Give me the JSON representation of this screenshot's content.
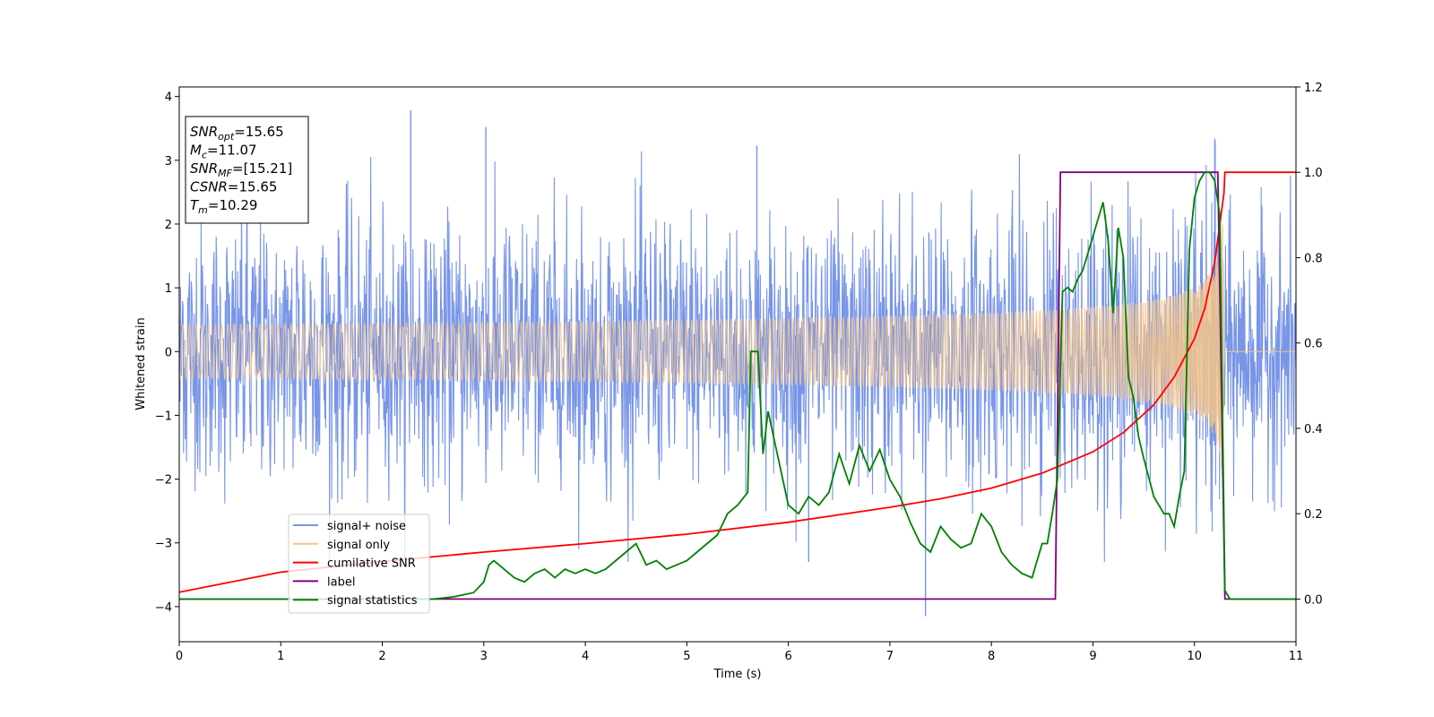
{
  "chart_data": {
    "type": "line",
    "xlabel": "Time (s)",
    "ylabel": "Whitened strain",
    "xlim": [
      0,
      11
    ],
    "ylim_left": [
      -4.55,
      4.15
    ],
    "ylim_right": [
      -0.1,
      1.2
    ],
    "x_ticks": [
      0,
      1,
      2,
      3,
      4,
      5,
      6,
      7,
      8,
      9,
      10,
      11
    ],
    "y_ticks_left": [
      -4,
      -3,
      -2,
      -1,
      0,
      1,
      2,
      3,
      4
    ],
    "y_ticks_right": [
      0.0,
      0.2,
      0.4,
      0.6,
      0.8,
      1.0,
      1.2
    ],
    "y_tick_labels_left": [
      "−4",
      "−3",
      "−2",
      "−1",
      "0",
      "1",
      "2",
      "3",
      "4"
    ],
    "y_tick_labels_right": [
      "0.0",
      "0.2",
      "0.4",
      "0.6",
      "0.8",
      "1.0",
      "1.2"
    ],
    "info_box": [
      {
        "sym": "SNR",
        "sub": "opt",
        "value": "=15.65"
      },
      {
        "sym": "M",
        "sub": "c",
        "value": "=11.07"
      },
      {
        "sym": "SNR",
        "sub": "MF",
        "value": "=[15.21]"
      },
      {
        "sym": "CSNR",
        "sub": "",
        "value": "=15.65"
      },
      {
        "sym": "T",
        "sub": "m",
        "value": "=10.29"
      }
    ],
    "legend_position": "lower-left",
    "series": [
      {
        "name": "signal+ noise",
        "axis": "left",
        "color": "#7895e8",
        "kind": "noise",
        "noise_std": 0.95,
        "noise_peak": 3.78,
        "noise_trough": -4.15
      },
      {
        "name": "signal only",
        "axis": "left",
        "color": "#f5c48a",
        "kind": "chirp",
        "amplitude_start": 0.06,
        "amplitude_end": 2.0,
        "merger_time": 10.29
      },
      {
        "name": "cumilative SNR",
        "axis": "right",
        "color": "#ff0000",
        "x": [
          0,
          1,
          2,
          3,
          4,
          5,
          6,
          7,
          7.5,
          8,
          8.5,
          9,
          9.3,
          9.6,
          9.8,
          10.0,
          10.1,
          10.2,
          10.29,
          10.3,
          11
        ],
        "y": [
          0.016,
          0.063,
          0.088,
          0.11,
          0.13,
          0.152,
          0.18,
          0.215,
          0.235,
          0.26,
          0.295,
          0.345,
          0.39,
          0.455,
          0.52,
          0.61,
          0.68,
          0.79,
          0.95,
          1.0,
          1.0
        ]
      },
      {
        "name": "label",
        "axis": "right",
        "color": "#800080",
        "x": [
          0,
          8.63,
          8.68,
          10.23,
          10.3,
          11
        ],
        "y": [
          0.0,
          0.0,
          1.0,
          1.0,
          0.0,
          0.0
        ]
      },
      {
        "name": "signal statistics",
        "axis": "right",
        "color": "#008000",
        "x": [
          0,
          2.5,
          2.7,
          2.9,
          3.0,
          3.05,
          3.1,
          3.2,
          3.3,
          3.4,
          3.5,
          3.6,
          3.7,
          3.8,
          3.9,
          4.0,
          4.1,
          4.2,
          4.3,
          4.4,
          4.5,
          4.6,
          4.7,
          4.8,
          4.9,
          5.0,
          5.1,
          5.2,
          5.3,
          5.4,
          5.5,
          5.6,
          5.63,
          5.7,
          5.75,
          5.8,
          5.9,
          6.0,
          6.1,
          6.2,
          6.3,
          6.4,
          6.5,
          6.6,
          6.7,
          6.8,
          6.9,
          7.0,
          7.1,
          7.2,
          7.3,
          7.4,
          7.5,
          7.6,
          7.7,
          7.8,
          7.9,
          8.0,
          8.1,
          8.2,
          8.3,
          8.4,
          8.5,
          8.55,
          8.6,
          8.65,
          8.7,
          8.75,
          8.8,
          8.85,
          8.9,
          9.0,
          9.05,
          9.1,
          9.15,
          9.2,
          9.25,
          9.3,
          9.35,
          9.4,
          9.45,
          9.5,
          9.6,
          9.7,
          9.75,
          9.8,
          9.85,
          9.9,
          9.95,
          10.0,
          10.05,
          10.1,
          10.15,
          10.2,
          10.25,
          10.3,
          10.35,
          11
        ],
        "y": [
          0.0,
          0.0,
          0.005,
          0.015,
          0.04,
          0.08,
          0.09,
          0.07,
          0.05,
          0.04,
          0.06,
          0.07,
          0.05,
          0.07,
          0.06,
          0.07,
          0.06,
          0.07,
          0.09,
          0.11,
          0.13,
          0.08,
          0.09,
          0.07,
          0.08,
          0.09,
          0.11,
          0.13,
          0.15,
          0.2,
          0.22,
          0.25,
          0.58,
          0.58,
          0.34,
          0.44,
          0.33,
          0.22,
          0.2,
          0.24,
          0.22,
          0.25,
          0.34,
          0.27,
          0.36,
          0.3,
          0.35,
          0.28,
          0.24,
          0.18,
          0.13,
          0.11,
          0.17,
          0.14,
          0.12,
          0.13,
          0.2,
          0.17,
          0.11,
          0.08,
          0.06,
          0.05,
          0.13,
          0.13,
          0.2,
          0.28,
          0.72,
          0.73,
          0.72,
          0.75,
          0.77,
          0.85,
          0.89,
          0.93,
          0.84,
          0.67,
          0.87,
          0.8,
          0.52,
          0.47,
          0.38,
          0.33,
          0.24,
          0.2,
          0.2,
          0.17,
          0.24,
          0.3,
          0.82,
          0.94,
          0.98,
          1.0,
          1.0,
          0.98,
          0.9,
          0.02,
          0.0,
          0.0
        ]
      }
    ]
  }
}
